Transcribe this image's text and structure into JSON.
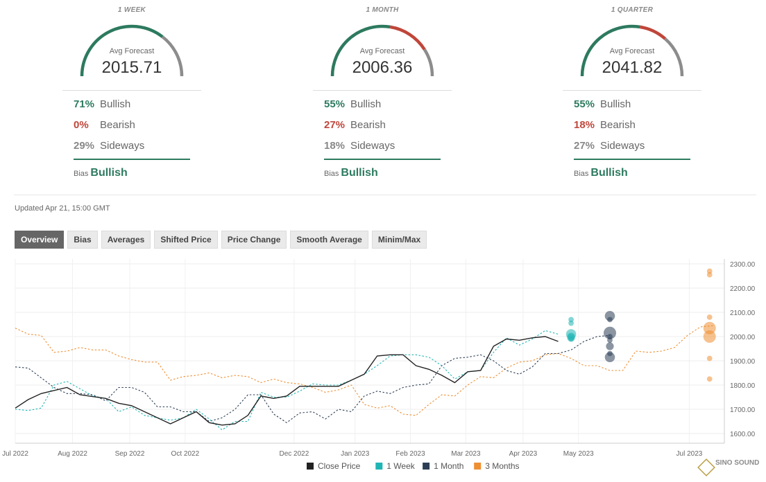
{
  "panels": [
    {
      "title": "1 WEEK",
      "avg_label": "Avg Forecast",
      "avg": "2015.71",
      "bullish_pct": "71%",
      "bullish": "Bullish",
      "bearish_pct": "0%",
      "bearish": "Bearish",
      "sideways_pct": "29%",
      "sideways": "Sideways",
      "bias_label": "Bias",
      "bias": "Bullish",
      "gauge": {
        "bullish": 0.71,
        "bearish": 0.0,
        "sideways": 0.29
      }
    },
    {
      "title": "1 MONTH",
      "avg_label": "Avg Forecast",
      "avg": "2006.36",
      "bullish_pct": "55%",
      "bullish": "Bullish",
      "bearish_pct": "27%",
      "bearish": "Bearish",
      "sideways_pct": "18%",
      "sideways": "Sideways",
      "bias_label": "Bias",
      "bias": "Bullish",
      "gauge": {
        "bullish": 0.55,
        "bearish": 0.27,
        "sideways": 0.18
      }
    },
    {
      "title": "1 QUARTER",
      "avg_label": "Avg Forecast",
      "avg": "2041.82",
      "bullish_pct": "55%",
      "bullish": "Bullish",
      "bearish_pct": "18%",
      "bearish": "Bearish",
      "sideways_pct": "27%",
      "sideways": "Sideways",
      "bias_label": "Bias",
      "bias": "Bullish",
      "gauge": {
        "bullish": 0.55,
        "bearish": 0.18,
        "sideways": 0.27
      }
    }
  ],
  "updated": "Updated Apr 21, 15:00 GMT",
  "tabs": [
    "Overview",
    "Bias",
    "Averages",
    "Shifted Price",
    "Price Change",
    "Smooth Average",
    "Minim/Max"
  ],
  "active_tab": "Overview",
  "watermark": "SINO SOUND",
  "colors": {
    "bullish": "#2d7a5f",
    "bearish": "#c0463a",
    "sideways": "#8c8c8c",
    "close": "#222222",
    "week": "#1fb5b5",
    "month": "#2c3e55",
    "quarter": "#ee8f33"
  },
  "chart_data": {
    "type": "line",
    "x_tick_labels": [
      "Jul 2022",
      "Aug 2022",
      "Sep 2022",
      "Oct 2022",
      "Dec 2022",
      "Jan 2023",
      "Feb 2023",
      "Mar 2023",
      "Apr 2023",
      "May 2023",
      "Jul 2023"
    ],
    "x_tick_dates": [
      "2022-07-01",
      "2022-08-01",
      "2022-09-01",
      "2022-10-01",
      "2022-11-29",
      "2023-01-01",
      "2023-01-31",
      "2023-03-02",
      "2023-04-02",
      "2023-05-02",
      "2023-07-01"
    ],
    "x_range": [
      "2022-07-01",
      "2023-07-20"
    ],
    "ylim": [
      1560,
      2320
    ],
    "y_ticks": [
      "2300.00",
      "2200.00",
      "2100.00",
      "2000.00",
      "1900.00",
      "1800.00",
      "1700.00",
      "1600.00"
    ],
    "y_tick_values": [
      2300,
      2200,
      2100,
      2000,
      1900,
      1800,
      1700,
      1600
    ],
    "grid": true,
    "legend_position": "bottom",
    "series": [
      {
        "name": "Close Price",
        "style": "solid",
        "color": "#222222",
        "points": [
          [
            "2022-07-01",
            1705
          ],
          [
            "2022-07-08",
            1740
          ],
          [
            "2022-07-15",
            1765
          ],
          [
            "2022-07-29",
            1790
          ],
          [
            "2022-08-05",
            1760
          ],
          [
            "2022-08-19",
            1745
          ],
          [
            "2022-08-26",
            1725
          ],
          [
            "2022-09-02",
            1715
          ],
          [
            "2022-09-16",
            1665
          ],
          [
            "2022-09-23",
            1640
          ],
          [
            "2022-09-30",
            1665
          ],
          [
            "2022-10-07",
            1690
          ],
          [
            "2022-10-14",
            1645
          ],
          [
            "2022-10-21",
            1635
          ],
          [
            "2022-10-28",
            1640
          ],
          [
            "2022-11-04",
            1675
          ],
          [
            "2022-11-11",
            1755
          ],
          [
            "2022-11-18",
            1745
          ],
          [
            "2022-11-25",
            1755
          ],
          [
            "2022-12-02",
            1795
          ],
          [
            "2022-12-09",
            1795
          ],
          [
            "2022-12-16",
            1795
          ],
          [
            "2022-12-23",
            1795
          ],
          [
            "2022-12-30",
            1820
          ],
          [
            "2023-01-06",
            1845
          ],
          [
            "2023-01-13",
            1920
          ],
          [
            "2023-01-20",
            1925
          ],
          [
            "2023-01-27",
            1925
          ],
          [
            "2023-02-03",
            1880
          ],
          [
            "2023-02-10",
            1865
          ],
          [
            "2023-02-17",
            1840
          ],
          [
            "2023-02-24",
            1810
          ],
          [
            "2023-03-03",
            1855
          ],
          [
            "2023-03-10",
            1860
          ],
          [
            "2023-03-17",
            1960
          ],
          [
            "2023-03-24",
            1990
          ],
          [
            "2023-03-31",
            1985
          ],
          [
            "2023-04-07",
            1995
          ],
          [
            "2023-04-14",
            2000
          ],
          [
            "2023-04-21",
            1980
          ]
        ]
      },
      {
        "name": "1 Week",
        "style": "dashed",
        "color": "#1fb5b5",
        "points": [
          [
            "2022-07-01",
            1700
          ],
          [
            "2022-07-08",
            1695
          ],
          [
            "2022-07-15",
            1705
          ],
          [
            "2022-07-22",
            1800
          ],
          [
            "2022-07-29",
            1815
          ],
          [
            "2022-08-05",
            1785
          ],
          [
            "2022-08-12",
            1755
          ],
          [
            "2022-08-19",
            1745
          ],
          [
            "2022-08-26",
            1690
          ],
          [
            "2022-09-02",
            1710
          ],
          [
            "2022-09-09",
            1675
          ],
          [
            "2022-09-16",
            1665
          ],
          [
            "2022-09-23",
            1655
          ],
          [
            "2022-09-30",
            1665
          ],
          [
            "2022-10-07",
            1700
          ],
          [
            "2022-10-14",
            1660
          ],
          [
            "2022-10-21",
            1615
          ],
          [
            "2022-10-28",
            1650
          ],
          [
            "2022-11-04",
            1650
          ],
          [
            "2022-11-11",
            1770
          ],
          [
            "2022-11-18",
            1750
          ],
          [
            "2022-11-25",
            1750
          ],
          [
            "2022-12-02",
            1775
          ],
          [
            "2022-12-09",
            1805
          ],
          [
            "2022-12-16",
            1800
          ],
          [
            "2022-12-23",
            1800
          ],
          [
            "2022-12-30",
            1820
          ],
          [
            "2023-01-06",
            1845
          ],
          [
            "2023-01-13",
            1880
          ],
          [
            "2023-01-20",
            1920
          ],
          [
            "2023-01-27",
            1925
          ],
          [
            "2023-02-03",
            1925
          ],
          [
            "2023-02-10",
            1915
          ],
          [
            "2023-02-17",
            1880
          ],
          [
            "2023-02-24",
            1825
          ],
          [
            "2023-03-03",
            1855
          ],
          [
            "2023-03-10",
            1860
          ],
          [
            "2023-03-17",
            1935
          ],
          [
            "2023-03-24",
            1995
          ],
          [
            "2023-03-31",
            1965
          ],
          [
            "2023-04-07",
            1990
          ],
          [
            "2023-04-14",
            2025
          ],
          [
            "2023-04-21",
            2010
          ]
        ]
      },
      {
        "name": "1 Month",
        "style": "dashed",
        "color": "#2c3e55",
        "points": [
          [
            "2022-07-01",
            1875
          ],
          [
            "2022-07-08",
            1870
          ],
          [
            "2022-07-22",
            1790
          ],
          [
            "2022-07-29",
            1765
          ],
          [
            "2022-08-05",
            1765
          ],
          [
            "2022-08-12",
            1760
          ],
          [
            "2022-08-19",
            1735
          ],
          [
            "2022-08-26",
            1790
          ],
          [
            "2022-09-02",
            1790
          ],
          [
            "2022-09-09",
            1770
          ],
          [
            "2022-09-16",
            1710
          ],
          [
            "2022-09-23",
            1710
          ],
          [
            "2022-09-30",
            1690
          ],
          [
            "2022-10-07",
            1690
          ],
          [
            "2022-10-14",
            1650
          ],
          [
            "2022-10-21",
            1665
          ],
          [
            "2022-10-28",
            1700
          ],
          [
            "2022-11-04",
            1760
          ],
          [
            "2022-11-11",
            1760
          ],
          [
            "2022-11-18",
            1680
          ],
          [
            "2022-11-25",
            1645
          ],
          [
            "2022-12-02",
            1685
          ],
          [
            "2022-12-09",
            1690
          ],
          [
            "2022-12-16",
            1660
          ],
          [
            "2022-12-23",
            1700
          ],
          [
            "2022-12-30",
            1690
          ],
          [
            "2023-01-06",
            1755
          ],
          [
            "2023-01-13",
            1775
          ],
          [
            "2023-01-20",
            1765
          ],
          [
            "2023-01-27",
            1790
          ],
          [
            "2023-02-03",
            1800
          ],
          [
            "2023-02-10",
            1805
          ],
          [
            "2023-02-17",
            1880
          ],
          [
            "2023-02-24",
            1910
          ],
          [
            "2023-03-03",
            1915
          ],
          [
            "2023-03-10",
            1925
          ],
          [
            "2023-03-17",
            1900
          ],
          [
            "2023-03-24",
            1860
          ],
          [
            "2023-03-31",
            1845
          ],
          [
            "2023-04-07",
            1875
          ],
          [
            "2023-04-14",
            1930
          ],
          [
            "2023-04-21",
            1930
          ],
          [
            "2023-04-28",
            1945
          ],
          [
            "2023-05-05",
            1980
          ],
          [
            "2023-05-12",
            2000
          ],
          [
            "2023-05-19",
            2005
          ]
        ]
      },
      {
        "name": "3 Months",
        "style": "dashed",
        "color": "#ee8f33",
        "points": [
          [
            "2022-07-01",
            2035
          ],
          [
            "2022-07-08",
            2010
          ],
          [
            "2022-07-15",
            2005
          ],
          [
            "2022-07-22",
            1935
          ],
          [
            "2022-07-29",
            1940
          ],
          [
            "2022-08-05",
            1955
          ],
          [
            "2022-08-12",
            1945
          ],
          [
            "2022-08-19",
            1945
          ],
          [
            "2022-08-26",
            1920
          ],
          [
            "2022-09-02",
            1905
          ],
          [
            "2022-09-09",
            1895
          ],
          [
            "2022-09-16",
            1895
          ],
          [
            "2022-09-23",
            1820
          ],
          [
            "2022-09-30",
            1835
          ],
          [
            "2022-10-07",
            1840
          ],
          [
            "2022-10-14",
            1850
          ],
          [
            "2022-10-21",
            1830
          ],
          [
            "2022-10-28",
            1840
          ],
          [
            "2022-11-04",
            1835
          ],
          [
            "2022-11-11",
            1810
          ],
          [
            "2022-11-18",
            1825
          ],
          [
            "2022-11-25",
            1810
          ],
          [
            "2022-12-02",
            1805
          ],
          [
            "2022-12-09",
            1790
          ],
          [
            "2022-12-16",
            1770
          ],
          [
            "2022-12-23",
            1780
          ],
          [
            "2022-12-30",
            1800
          ],
          [
            "2023-01-06",
            1720
          ],
          [
            "2023-01-13",
            1705
          ],
          [
            "2023-01-20",
            1715
          ],
          [
            "2023-01-27",
            1680
          ],
          [
            "2023-02-03",
            1675
          ],
          [
            "2023-02-10",
            1720
          ],
          [
            "2023-02-17",
            1760
          ],
          [
            "2023-02-24",
            1755
          ],
          [
            "2023-03-03",
            1800
          ],
          [
            "2023-03-10",
            1835
          ],
          [
            "2023-03-17",
            1830
          ],
          [
            "2023-03-24",
            1870
          ],
          [
            "2023-03-31",
            1895
          ],
          [
            "2023-04-07",
            1900
          ],
          [
            "2023-04-14",
            1925
          ],
          [
            "2023-04-21",
            1930
          ],
          [
            "2023-04-28",
            1910
          ],
          [
            "2023-05-05",
            1880
          ],
          [
            "2023-05-12",
            1880
          ],
          [
            "2023-05-19",
            1860
          ],
          [
            "2023-05-26",
            1860
          ],
          [
            "2023-06-02",
            1940
          ],
          [
            "2023-06-09",
            1935
          ],
          [
            "2023-06-16",
            1940
          ],
          [
            "2023-06-23",
            1955
          ],
          [
            "2023-06-30",
            2005
          ],
          [
            "2023-07-07",
            2040
          ],
          [
            "2023-07-14",
            2045
          ]
        ]
      }
    ],
    "forecast_dots": [
      {
        "series": "1 Week",
        "date": "2023-04-28",
        "values": [
          2070,
          2055,
          2010,
          2000,
          1995,
          1990
        ],
        "weights": [
          1,
          1,
          3,
          2,
          2,
          1
        ]
      },
      {
        "series": "1 Month",
        "date": "2023-05-19",
        "values": [
          2085,
          2070,
          2015,
          2000,
          1985,
          1960,
          1930,
          1915
        ],
        "weights": [
          3,
          1,
          4,
          1,
          1,
          2,
          1,
          3
        ]
      },
      {
        "series": "3 Months",
        "date": "2023-07-12",
        "values": [
          2270,
          2255,
          2080,
          2035,
          2000,
          1910,
          1825
        ],
        "weights": [
          1,
          1,
          1,
          4,
          4,
          1,
          1
        ]
      }
    ]
  }
}
